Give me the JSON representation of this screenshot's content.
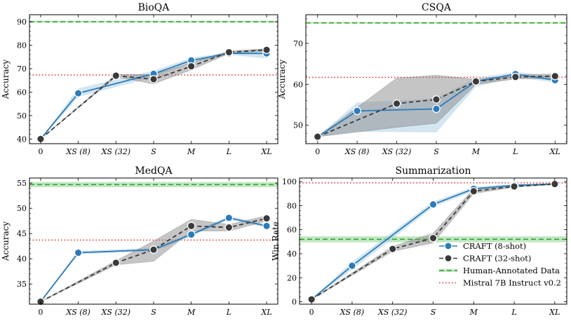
{
  "colors": {
    "craft8": "#2b7bba",
    "craft8_band": "#9ecae1",
    "craft32": "#3a3a3a",
    "craft32_band": "#8c8c8c",
    "human": "#2ca02c",
    "human_band": "#8fd18f",
    "mistral": "#d62728"
  },
  "legend": {
    "items": [
      {
        "label": "CRAFT (8-shot)",
        "style": "craft8"
      },
      {
        "label": "CRAFT (32-shot)",
        "style": "craft32"
      },
      {
        "label": "Human-Annotated Data",
        "style": "human"
      },
      {
        "label": "Mistral 7B Instruct v0.2",
        "style": "mistral"
      }
    ],
    "placement": "lower-right of Summarization panel"
  },
  "chart_data": [
    {
      "type": "line",
      "title": "BioQA",
      "ylabel": "Accuracy",
      "xlabel": "",
      "categories": [
        "0",
        "XS (8)",
        "XS (32)",
        "S",
        "M",
        "L",
        "XL"
      ],
      "ylim": [
        38,
        93
      ],
      "yticks": [
        40,
        50,
        60,
        70,
        80,
        90
      ],
      "grid": false,
      "series": [
        {
          "name": "CRAFT (8-shot)",
          "style": "craft8",
          "values": [
            40,
            59.5,
            null,
            67.8,
            73.5,
            76.5,
            76.5
          ],
          "band_low": [
            40,
            58,
            null,
            66.5,
            72.5,
            76,
            74.5
          ],
          "band_high": [
            40,
            61.5,
            null,
            69,
            74.5,
            77,
            78.5
          ]
        },
        {
          "name": "CRAFT (32-shot)",
          "style": "craft32",
          "values": [
            40,
            null,
            67,
            65.5,
            71,
            77,
            78
          ],
          "band_low": [
            40,
            null,
            66.5,
            63.5,
            69.5,
            76.5,
            77.5
          ],
          "band_high": [
            40,
            null,
            67.5,
            67.5,
            72.5,
            77.5,
            78.5
          ]
        }
      ],
      "hlines": [
        {
          "name": "Human-Annotated Data",
          "style": "human",
          "y": 90,
          "band": [
            89.6,
            90.4
          ]
        },
        {
          "name": "Mistral 7B Instruct v0.2",
          "style": "mistral",
          "y": 67.3
        }
      ]
    },
    {
      "type": "line",
      "title": "CSQA",
      "ylabel": "Accuracy",
      "xlabel": "",
      "categories": [
        "0",
        "XS (8)",
        "XS (32)",
        "S",
        "M",
        "L",
        "XL"
      ],
      "ylim": [
        45.5,
        77
      ],
      "yticks": [
        50,
        60,
        70
      ],
      "grid": false,
      "series": [
        {
          "name": "CRAFT (8-shot)",
          "style": "craft8",
          "values": [
            47.2,
            53.5,
            null,
            54,
            60.7,
            62.5,
            61
          ],
          "band_low": [
            47.2,
            48.5,
            null,
            48.3,
            59.5,
            61.8,
            60.5
          ],
          "band_high": [
            47.2,
            55.5,
            null,
            56.5,
            61.5,
            63,
            62
          ]
        },
        {
          "name": "CRAFT (32-shot)",
          "style": "craft32",
          "values": [
            47.2,
            null,
            55.3,
            56.3,
            60.7,
            61.8,
            62
          ],
          "band_low": [
            47.2,
            null,
            49.5,
            50.5,
            60,
            61.3,
            61.5
          ],
          "band_high": [
            47.2,
            null,
            61.5,
            62.2,
            61.2,
            62.3,
            62.5
          ]
        }
      ],
      "hlines": [
        {
          "name": "Human-Annotated Data",
          "style": "human",
          "y": 75,
          "band": [
            74.8,
            75.2
          ]
        },
        {
          "name": "Mistral 7B Instruct v0.2",
          "style": "mistral",
          "y": 61.7
        }
      ]
    },
    {
      "type": "line",
      "title": "MedQA",
      "ylabel": "Accuracy",
      "xlabel": "",
      "categories": [
        "0",
        "XS (8)",
        "XS (32)",
        "S",
        "M",
        "L",
        "XL"
      ],
      "ylim": [
        31,
        56
      ],
      "yticks": [
        35,
        40,
        45,
        50,
        55
      ],
      "grid": false,
      "series": [
        {
          "name": "CRAFT (8-shot)",
          "style": "craft8",
          "values": [
            31.5,
            41.2,
            null,
            41.8,
            44.8,
            48.1,
            46.5
          ],
          "band_low": [
            31.5,
            41,
            null,
            41.5,
            44.5,
            47.8,
            46.2
          ],
          "band_high": [
            31.5,
            41.5,
            null,
            42.1,
            45.1,
            48.4,
            46.8
          ]
        },
        {
          "name": "CRAFT (32-shot)",
          "style": "craft32",
          "values": [
            31.5,
            null,
            39.2,
            41.8,
            46.5,
            46.2,
            48
          ],
          "band_low": [
            31.5,
            null,
            38.8,
            39.5,
            45.5,
            45.5,
            47.5
          ],
          "band_high": [
            31.5,
            null,
            39.6,
            43.5,
            47.8,
            46.8,
            48.5
          ]
        }
      ],
      "hlines": [
        {
          "name": "Human-Annotated Data",
          "style": "human",
          "y": 54.7,
          "band": [
            54.2,
            55.2
          ]
        },
        {
          "name": "Mistral 7B Instruct v0.2",
          "style": "mistral",
          "y": 43.7
        }
      ]
    },
    {
      "type": "line",
      "title": "Summarization",
      "ylabel": "Win Rate",
      "xlabel": "",
      "categories": [
        "0",
        "XS (8)",
        "XS (32)",
        "S",
        "M",
        "L",
        "XL"
      ],
      "ylim": [
        -2,
        103
      ],
      "yticks": [
        0,
        20,
        40,
        60,
        80,
        100
      ],
      "grid": false,
      "series": [
        {
          "name": "CRAFT (8-shot)",
          "style": "craft8",
          "values": [
            2,
            30,
            null,
            81,
            94,
            97,
            98
          ],
          "band_low": [
            2,
            27,
            null,
            79,
            92.5,
            96.5,
            97.5
          ],
          "band_high": [
            2,
            33,
            null,
            83,
            95.5,
            97.5,
            98.5
          ]
        },
        {
          "name": "CRAFT (32-shot)",
          "style": "craft32",
          "values": [
            2,
            null,
            44,
            53,
            92,
            96,
            98
          ],
          "band_low": [
            2,
            null,
            42,
            49,
            90,
            95.5,
            97.5
          ],
          "band_high": [
            2,
            null,
            46,
            57,
            94,
            96.5,
            98.5
          ]
        }
      ],
      "hlines": [
        {
          "name": "Human-Annotated Data",
          "style": "human",
          "y": 52,
          "band": [
            49.5,
            54.5
          ]
        },
        {
          "name": "Mistral 7B Instruct v0.2",
          "style": "mistral",
          "y": 99
        }
      ]
    }
  ]
}
